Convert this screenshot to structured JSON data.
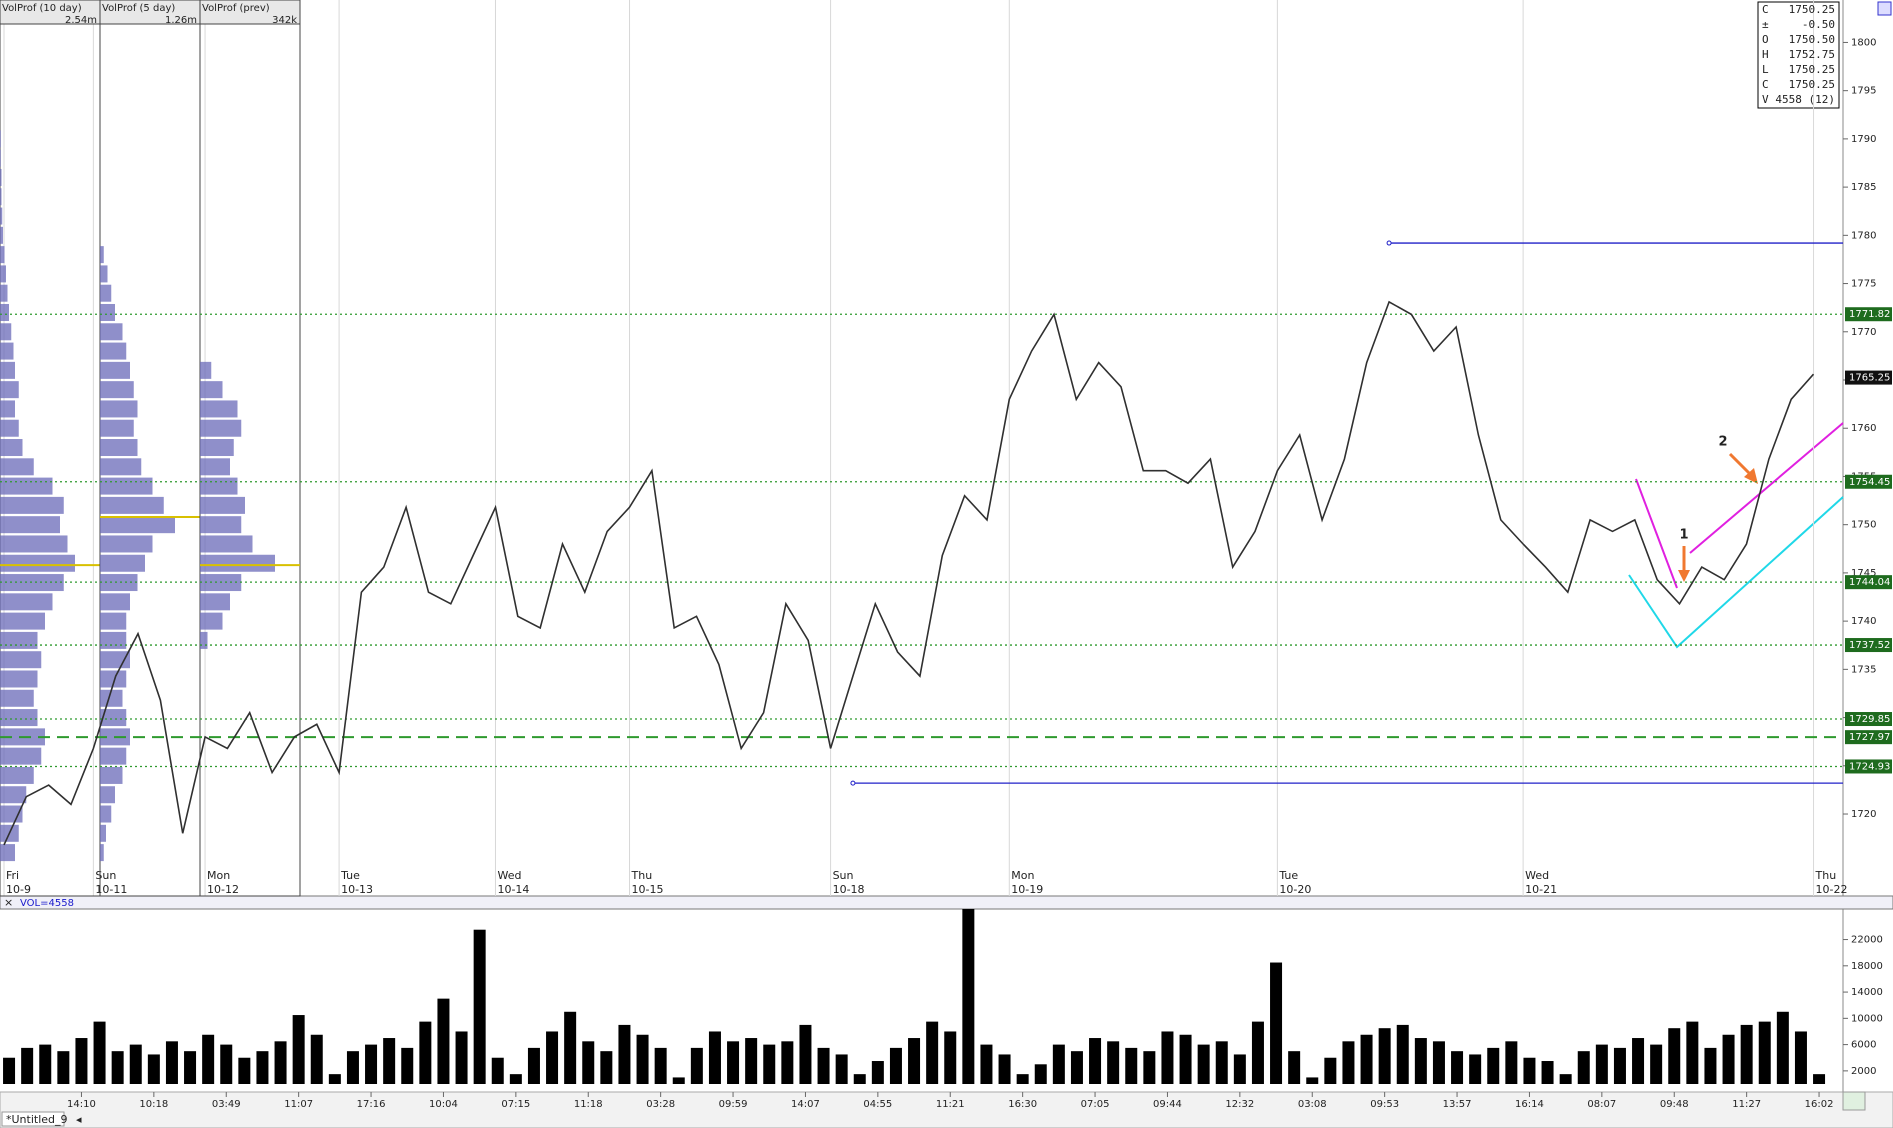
{
  "chart_data": [
    {
      "type": "line",
      "color": "#303030",
      "weekdays": [
        "Fri",
        null,
        null,
        null,
        "Sun",
        null,
        null,
        null,
        null,
        "Mon",
        null,
        null,
        null,
        null,
        null,
        "Tue",
        null,
        null,
        null,
        null,
        null,
        null,
        "Wed",
        null,
        null,
        null,
        null,
        null,
        "Thu",
        null,
        null,
        null,
        null,
        null,
        null,
        null,
        null,
        "Sun",
        null,
        null,
        null,
        null,
        null,
        null,
        null,
        "Mon",
        null,
        null,
        null,
        null,
        null,
        null,
        null,
        null,
        null,
        null,
        null,
        "Tue",
        null,
        null,
        null,
        null,
        null,
        null,
        null,
        null,
        null,
        null,
        "Wed",
        null,
        null,
        null,
        null,
        null,
        null,
        null,
        null,
        null,
        null,
        null,
        null,
        "Thu"
      ],
      "categories": [
        "10-9",
        null,
        null,
        null,
        "10-11",
        null,
        null,
        null,
        null,
        "10-12",
        null,
        null,
        null,
        null,
        null,
        "10-13",
        null,
        null,
        null,
        null,
        null,
        null,
        "10-14",
        null,
        null,
        null,
        null,
        null,
        "10-15",
        null,
        null,
        null,
        null,
        null,
        null,
        null,
        null,
        "10-18",
        null,
        null,
        null,
        null,
        null,
        null,
        null,
        "10-19",
        null,
        null,
        null,
        null,
        null,
        null,
        null,
        null,
        null,
        null,
        null,
        "10-20",
        null,
        null,
        null,
        null,
        null,
        null,
        null,
        null,
        null,
        null,
        "10-21",
        null,
        null,
        null,
        null,
        null,
        null,
        null,
        null,
        null,
        null,
        null,
        null,
        "10-22"
      ],
      "values": [
        1716.8,
        1721.8,
        1723,
        1721,
        1726.8,
        1734.3,
        1738.7,
        1731.8,
        1718,
        1728,
        1726.8,
        1730.5,
        1724.3,
        1728,
        1729.3,
        1724.3,
        1743,
        1745.6,
        1751.8,
        1743,
        1741.8,
        1746.8,
        1751.8,
        1740.5,
        1739.3,
        1748,
        1743,
        1749.3,
        1751.8,
        1755.6,
        1739.3,
        1740.5,
        1735.5,
        1726.8,
        1730.5,
        1741.8,
        1738,
        1726.8,
        1734.3,
        1741.8,
        1736.8,
        1734.3,
        1746.8,
        1753,
        1750.5,
        1763,
        1768,
        1771.8,
        1763,
        1766.8,
        1764.3,
        1755.6,
        1755.6,
        1754.3,
        1756.8,
        1745.6,
        1749.3,
        1755.6,
        1759.3,
        1750.5,
        1756.8,
        1766.8,
        1773.1,
        1771.8,
        1768,
        1770.5,
        1759.3,
        1750.5,
        1748,
        1745.6,
        1743,
        1750.5,
        1749.3,
        1750.5,
        1744.3,
        1741.8,
        1745.6,
        1744.3,
        1748,
        1756.8,
        1763,
        1765.6
      ],
      "ylim": [
        1711.5,
        1804.4
      ],
      "yticks": [
        1720,
        1725,
        1730,
        1735,
        1740,
        1745,
        1750,
        1755,
        1760,
        1765,
        1770,
        1775,
        1780,
        1785,
        1790,
        1795,
        1800
      ],
      "levels": [
        {
          "value": 1771.82,
          "style": "dotted"
        },
        {
          "value": 1754.45,
          "style": "dotted"
        },
        {
          "value": 1744.04,
          "style": "dotted"
        },
        {
          "value": 1737.52,
          "style": "dotted"
        },
        {
          "value": 1729.85,
          "style": "dotted"
        },
        {
          "value": 1727.97,
          "style": "dashed"
        },
        {
          "value": 1724.93,
          "style": "dotted"
        }
      ],
      "last": 1765.25,
      "rays": [
        {
          "value": 1779.2,
          "start": 62
        },
        {
          "value": 1723.2,
          "start": 38
        }
      ],
      "annotations": [
        "1",
        "2"
      ],
      "profile_prices": [
        1716,
        1718,
        1720,
        1722,
        1724,
        1726,
        1728,
        1730,
        1732,
        1734,
        1736,
        1738,
        1740,
        1742,
        1744,
        1746,
        1748,
        1750,
        1752,
        1754,
        1756,
        1758,
        1760,
        1762,
        1764,
        1766,
        1768,
        1770,
        1772,
        1774,
        1776,
        1778,
        1780,
        1782,
        1784,
        1786,
        1788,
        1790,
        1792,
        1794,
        1796
      ],
      "profiles": [
        {
          "name": "VolProf (10 day)",
          "total": "2.54m",
          "poc": 1745.8,
          "values": [
            20,
            25,
            30,
            35,
            45,
            55,
            60,
            50,
            45,
            50,
            55,
            50,
            60,
            70,
            85,
            100,
            90,
            80,
            85,
            70,
            45,
            30,
            25,
            20,
            25,
            20,
            18,
            15,
            12,
            10,
            8,
            6,
            4,
            3,
            2,
            2,
            1,
            1,
            0,
            0,
            0
          ]
        },
        {
          "name": "VolProf (5 day)",
          "total": "1.26m",
          "poc": 1750.8,
          "values": [
            5,
            8,
            15,
            20,
            30,
            35,
            40,
            35,
            30,
            35,
            40,
            35,
            35,
            40,
            50,
            60,
            70,
            100,
            85,
            70,
            55,
            50,
            45,
            50,
            45,
            40,
            35,
            30,
            20,
            15,
            10,
            5,
            0,
            0,
            0,
            0,
            0,
            0,
            0,
            0,
            0
          ]
        },
        {
          "name": "VolProf (prev)",
          "total": "342k",
          "poc": 1745.8,
          "values": [
            0,
            0,
            0,
            0,
            0,
            0,
            0,
            0,
            0,
            0,
            0,
            10,
            30,
            40,
            55,
            100,
            70,
            55,
            60,
            50,
            40,
            45,
            55,
            50,
            30,
            15,
            0,
            0,
            0,
            0,
            0,
            0,
            0,
            0,
            0,
            0,
            0,
            0,
            0,
            0,
            0
          ]
        }
      ]
    },
    {
      "type": "bar",
      "label": "VOL=4558",
      "color": "#000000",
      "categories": [
        null,
        null,
        null,
        null,
        "14:10",
        null,
        null,
        null,
        "10:18",
        null,
        null,
        null,
        "03:49",
        null,
        null,
        null,
        "11:07",
        null,
        null,
        null,
        "17:16",
        null,
        null,
        null,
        "10:04",
        null,
        null,
        null,
        "07:15",
        null,
        null,
        null,
        "11:18",
        null,
        null,
        null,
        "03:28",
        null,
        null,
        null,
        "09:59",
        null,
        null,
        null,
        "14:07",
        null,
        null,
        null,
        "04:55",
        null,
        null,
        null,
        "11:21",
        null,
        null,
        null,
        "16:30",
        null,
        null,
        null,
        "07:05",
        null,
        null,
        null,
        "09:44",
        null,
        null,
        null,
        "12:32",
        null,
        null,
        null,
        "03:08",
        null,
        null,
        null,
        "09:53",
        null,
        null,
        null,
        "13:57",
        null,
        null,
        null,
        "16:14",
        null,
        null,
        null,
        "08:07",
        null,
        null,
        null,
        "09:48",
        null,
        null,
        null,
        "11:27",
        null,
        null,
        null,
        "16:02"
      ],
      "values": [
        4000,
        5500,
        6000,
        5000,
        7000,
        9500,
        5000,
        6000,
        4500,
        6500,
        5000,
        7500,
        6000,
        4000,
        5000,
        6500,
        10500,
        7500,
        1500,
        5000,
        6000,
        7000,
        5500,
        9500,
        13000,
        8000,
        23500,
        4000,
        1500,
        5500,
        8000,
        11000,
        6500,
        5000,
        9000,
        7500,
        5500,
        1000,
        5500,
        8000,
        6500,
        7000,
        6000,
        6500,
        9000,
        5500,
        4500,
        1500,
        3500,
        5500,
        7000,
        9500,
        8000,
        27000,
        6000,
        4500,
        1500,
        3000,
        6000,
        5000,
        7000,
        6500,
        5500,
        5000,
        8000,
        7500,
        6000,
        6500,
        4500,
        9500,
        18500,
        5000,
        1000,
        4000,
        6500,
        7500,
        8500,
        9000,
        7000,
        6500,
        5000,
        4500,
        5500,
        6500,
        4000,
        3500,
        1500,
        5000,
        6000,
        5500,
        7000,
        6000,
        8500,
        9500,
        5500,
        7500,
        9000,
        9500,
        11000,
        8000,
        1500
      ],
      "ylim": [
        0,
        26500
      ],
      "yticks": [
        2000,
        6000,
        10000,
        14000,
        18000,
        22000
      ]
    }
  ],
  "info_box": [
    {
      "label": "C",
      "value": "1750.25"
    },
    {
      "label": "±",
      "value": "-0.50"
    },
    {
      "label": "O",
      "value": "1750.50"
    },
    {
      "label": "H",
      "value": "1752.75"
    },
    {
      "label": "L",
      "value": "1750.25"
    },
    {
      "label": "C",
      "value": "1750.25"
    },
    {
      "label": "V",
      "value": "4558 (12)"
    }
  ],
  "tab": "*Untitled_9"
}
